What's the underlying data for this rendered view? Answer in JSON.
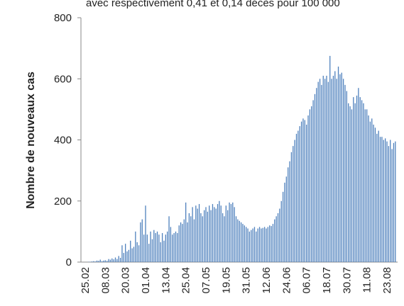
{
  "chart_data": {
    "type": "bar",
    "title": "avec respectivement 0,41 et 0,14 décès pour 100 000",
    "y_label": "Nombre de nouveaux cas",
    "categories": [
      "25.02",
      null,
      null,
      null,
      null,
      null,
      null,
      null,
      null,
      null,
      null,
      null,
      "08.03",
      null,
      null,
      null,
      null,
      null,
      null,
      null,
      null,
      null,
      null,
      null,
      "20.03",
      null,
      null,
      null,
      null,
      null,
      null,
      null,
      null,
      null,
      null,
      null,
      "01.04",
      null,
      null,
      null,
      null,
      null,
      null,
      null,
      null,
      null,
      null,
      null,
      "13.04",
      null,
      null,
      null,
      null,
      null,
      null,
      null,
      null,
      null,
      null,
      null,
      "25.04",
      null,
      null,
      null,
      null,
      null,
      null,
      null,
      null,
      null,
      null,
      null,
      "07.05",
      null,
      null,
      null,
      null,
      null,
      null,
      null,
      null,
      null,
      null,
      null,
      "19.05",
      null,
      null,
      null,
      null,
      null,
      null,
      null,
      null,
      null,
      null,
      null,
      "31.05",
      null,
      null,
      null,
      null,
      null,
      null,
      null,
      null,
      null,
      null,
      null,
      "12.06",
      null,
      null,
      null,
      null,
      null,
      null,
      null,
      null,
      null,
      null,
      null,
      "24.06",
      null,
      null,
      null,
      null,
      null,
      null,
      null,
      null,
      null,
      null,
      null,
      "06.07",
      null,
      null,
      null,
      null,
      null,
      null,
      null,
      null,
      null,
      null,
      null,
      "18.07",
      null,
      null,
      null,
      null,
      null,
      null,
      null,
      null,
      null,
      null,
      null,
      "30.07",
      null,
      null,
      null,
      null,
      null,
      null,
      null,
      null,
      null,
      null,
      null,
      "11.08",
      null,
      null,
      null,
      null,
      null,
      null,
      null,
      null,
      null,
      null,
      null,
      "23.08",
      null,
      null,
      null,
      null,
      null
    ],
    "values": [
      0,
      0,
      1,
      1,
      2,
      3,
      2,
      5,
      4,
      8,
      3,
      5,
      6,
      4,
      10,
      8,
      12,
      9,
      15,
      10,
      20,
      14,
      55,
      30,
      60,
      35,
      40,
      70,
      45,
      50,
      100,
      65,
      55,
      130,
      140,
      90,
      185,
      90,
      60,
      100,
      75,
      105,
      95,
      100,
      90,
      65,
      95,
      70,
      90,
      100,
      150,
      115,
      90,
      95,
      100,
      95,
      120,
      130,
      125,
      140,
      195,
      130,
      160,
      150,
      180,
      140,
      185,
      175,
      190,
      160,
      150,
      170,
      180,
      165,
      185,
      170,
      190,
      180,
      175,
      190,
      200,
      185,
      160,
      150,
      185,
      170,
      195,
      190,
      195,
      180,
      150,
      140,
      135,
      130,
      125,
      120,
      115,
      110,
      100,
      105,
      110,
      115,
      100,
      110,
      115,
      110,
      112,
      115,
      110,
      115,
      120,
      118,
      125,
      140,
      150,
      160,
      175,
      200,
      230,
      260,
      280,
      310,
      330,
      360,
      380,
      400,
      420,
      430,
      445,
      460,
      470,
      465,
      450,
      480,
      500,
      510,
      530,
      550,
      570,
      590,
      600,
      580,
      610,
      600,
      610,
      590,
      675,
      600,
      610,
      625,
      600,
      640,
      615,
      620,
      600,
      580,
      560,
      520,
      510,
      500,
      540,
      520,
      545,
      570,
      540,
      530,
      520,
      500,
      500,
      480,
      460,
      470,
      450,
      440,
      420,
      430,
      410,
      410,
      400,
      405,
      395,
      380,
      400,
      370,
      390,
      395
    ],
    "color": "#4f81bd",
    "ylim": [
      0,
      800
    ],
    "yticks": [
      0,
      200,
      400,
      600,
      800
    ],
    "grid": false
  }
}
